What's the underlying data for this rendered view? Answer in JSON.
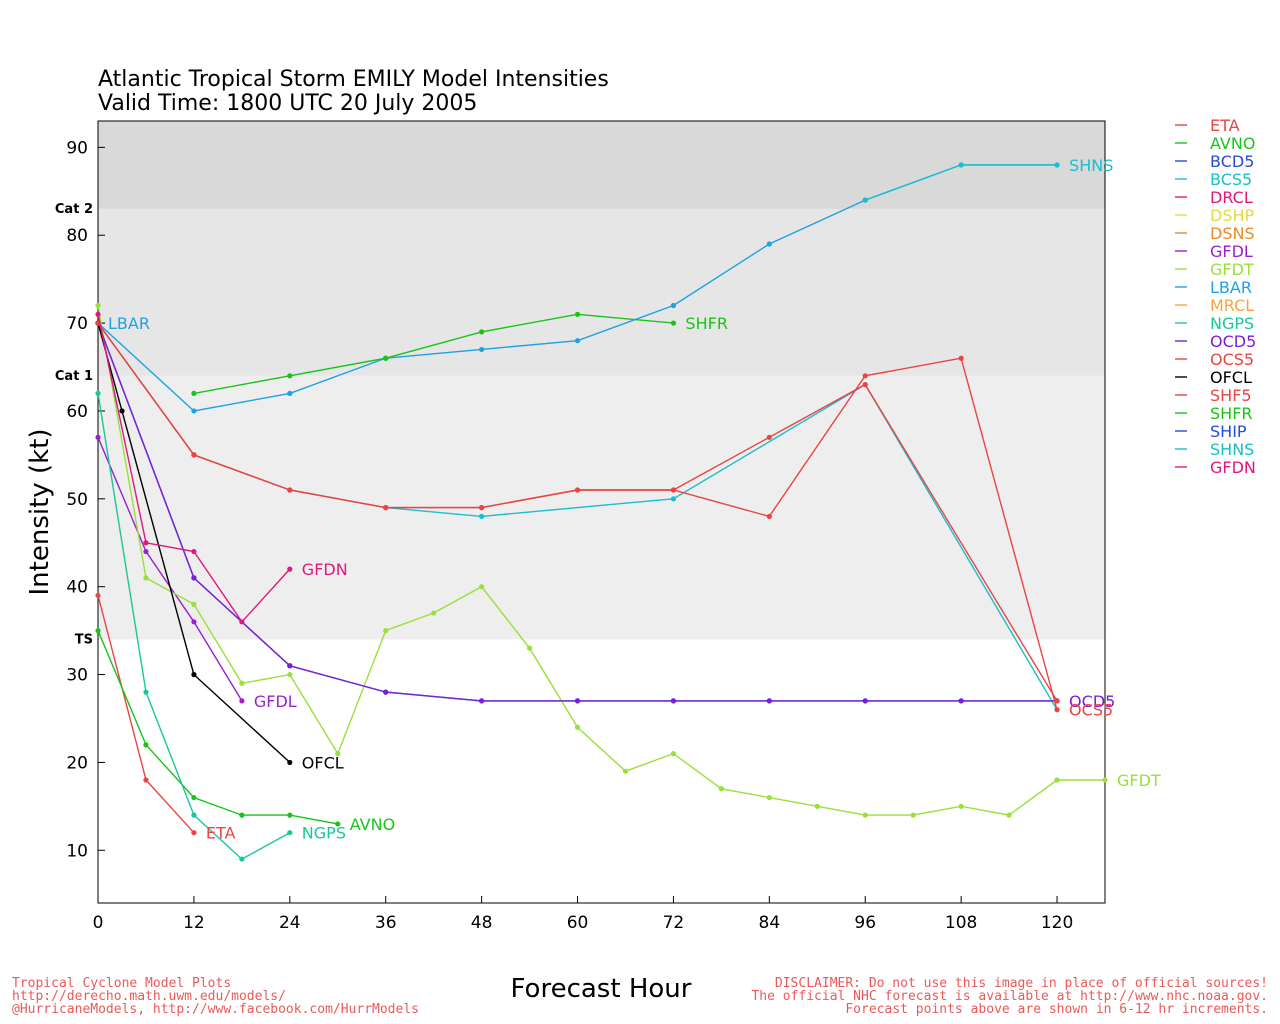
{
  "chart_data": {
    "type": "line",
    "title": "Atlantic Tropical Storm EMILY Model Intensities",
    "subtitle": "Valid Time: 1800 UTC 20 July 2005",
    "xlabel": "Forecast Hour",
    "ylabel": "Intensity (kt)",
    "xlim": [
      0,
      126
    ],
    "ylim": [
      4,
      93
    ],
    "xticks": [
      0,
      12,
      24,
      36,
      48,
      60,
      72,
      84,
      96,
      108,
      120
    ],
    "yticks": [
      10,
      20,
      30,
      40,
      50,
      60,
      70,
      80,
      90
    ],
    "bands": [
      {
        "label": "TS",
        "from": 34,
        "to": 64,
        "color": "#eeeeee"
      },
      {
        "label": "Cat 1",
        "from": 64,
        "to": 83,
        "color": "#e6e6e6"
      },
      {
        "label": "Cat 2",
        "from": 83,
        "to": 93,
        "color": "#d9d9d9"
      }
    ],
    "legend_position": "right",
    "series": [
      {
        "name": "ETA",
        "color": "#e84545",
        "x": [
          0,
          6,
          12
        ],
        "y": [
          39,
          18,
          12
        ],
        "end_label": "ETA"
      },
      {
        "name": "AVNO",
        "color": "#19c419",
        "x": [
          0,
          6,
          12,
          18,
          24,
          30
        ],
        "y": [
          35,
          22,
          16,
          14,
          14,
          13
        ],
        "end_label": "AVNO"
      },
      {
        "name": "BCD5",
        "color": "#2a4bd7",
        "x": [
          0,
          12,
          24,
          36,
          48,
          60,
          72,
          84,
          96,
          108,
          120
        ],
        "y": [
          70,
          41,
          31,
          28,
          27,
          27,
          27,
          27,
          27,
          27,
          27
        ]
      },
      {
        "name": "BCS5",
        "color": "#17bfcf",
        "x": [
          0,
          12,
          24,
          36,
          48,
          72,
          96,
          120
        ],
        "y": [
          70,
          55,
          51,
          49,
          48,
          50,
          63,
          26
        ]
      },
      {
        "name": "DRCL",
        "color": "#e0177f",
        "x": [],
        "y": []
      },
      {
        "name": "DSHP",
        "color": "#e3d84a",
        "x": [],
        "y": []
      },
      {
        "name": "DSNS",
        "color": "#ea8a2a",
        "x": [],
        "y": []
      },
      {
        "name": "GFDL",
        "color": "#9b1fd0",
        "x": [
          0,
          6,
          12,
          18
        ],
        "y": [
          57,
          44,
          36,
          27
        ],
        "end_label": "GFDL"
      },
      {
        "name": "GFDT",
        "color": "#99e03a",
        "x": [
          0,
          6,
          12,
          18,
          24,
          30,
          36,
          42,
          48,
          54,
          60,
          66,
          72,
          78,
          84,
          90,
          96,
          102,
          108,
          114,
          120,
          126
        ],
        "y": [
          72,
          41,
          38,
          29,
          30,
          21,
          35,
          37,
          40,
          33,
          24,
          19,
          21,
          17,
          16,
          15,
          14,
          14,
          15,
          14,
          18,
          18
        ],
        "end_label": "GFDT"
      },
      {
        "name": "LBAR",
        "color": "#1ea2e2",
        "x": [
          0,
          12,
          24,
          36,
          48,
          60,
          72,
          84,
          96,
          108,
          120
        ],
        "y": [
          70,
          60,
          62,
          66,
          67,
          68,
          72,
          79,
          84,
          88,
          88
        ],
        "start_label": "LBAR"
      },
      {
        "name": "MRCL",
        "color": "#f2a640",
        "x": [],
        "y": []
      },
      {
        "name": "NGPS",
        "color": "#17c99a",
        "x": [
          0,
          6,
          12,
          18,
          24
        ],
        "y": [
          62,
          28,
          14,
          9,
          12
        ],
        "end_label": "NGPS"
      },
      {
        "name": "OCD5",
        "color": "#7a1fd6",
        "x": [
          0,
          12,
          24,
          36,
          48,
          60,
          72,
          84,
          96,
          108,
          120
        ],
        "y": [
          70,
          41,
          31,
          28,
          27,
          27,
          27,
          27,
          27,
          27,
          27
        ],
        "end_label": "OCD5"
      },
      {
        "name": "OCS5",
        "color": "#e84545",
        "x": [
          0,
          12,
          24,
          36,
          48,
          60,
          72,
          84,
          96,
          108,
          120
        ],
        "y": [
          70,
          55,
          51,
          49,
          49,
          51,
          51,
          48,
          64,
          66,
          26
        ],
        "end_label": "OCS5"
      },
      {
        "name": "OFCL",
        "color": "#000000",
        "x": [
          0,
          3,
          12,
          24
        ],
        "y": [
          70,
          60,
          30,
          20
        ],
        "end_label": "OFCL"
      },
      {
        "name": "SHF5",
        "color": "#e84545",
        "x": [
          0,
          12,
          24,
          36,
          48,
          60,
          72,
          84,
          96,
          120
        ],
        "y": [
          70,
          55,
          51,
          49,
          49,
          51,
          51,
          57,
          63,
          27
        ]
      },
      {
        "name": "SHFR",
        "color": "#19c419",
        "x": [
          12,
          24,
          36,
          48,
          60,
          72
        ],
        "y": [
          62,
          64,
          66,
          69,
          71,
          70
        ],
        "end_label": "SHFR"
      },
      {
        "name": "SHIP",
        "color": "#2a4bd7",
        "x": [],
        "y": []
      },
      {
        "name": "SHNS",
        "color": "#17bfcf",
        "x": [
          96,
          108,
          120
        ],
        "y": [
          84,
          88,
          88
        ],
        "end_label": "SHNS"
      },
      {
        "name": "GFDN",
        "color": "#e0177f",
        "x": [
          0,
          6,
          12,
          18,
          24
        ],
        "y": [
          71,
          45,
          44,
          36,
          42
        ],
        "end_label": "GFDN"
      }
    ]
  },
  "footer": {
    "left_lines": [
      "Tropical Cyclone Model Plots",
      "http://derecho.math.uwm.edu/models/",
      "@HurricaneModels, http://www.facebook.com/HurrModels"
    ],
    "right_lines": [
      "DISCLAIMER: Do not use this image in place of official sources!",
      "The official NHC forecast is available at http://www.nhc.noaa.gov.",
      "Forecast points above are shown in 6-12 hr increments."
    ]
  }
}
